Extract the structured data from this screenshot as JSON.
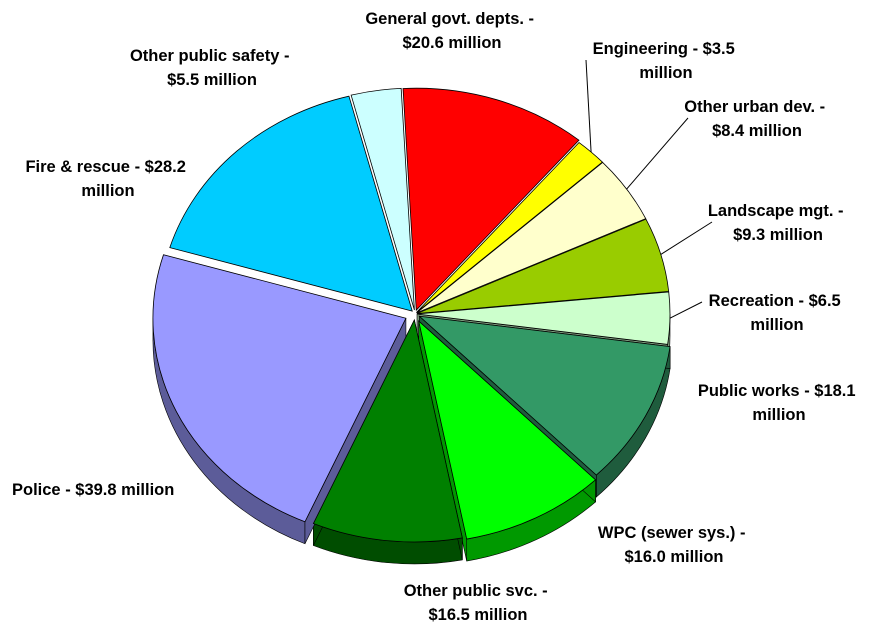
{
  "chart_data": {
    "type": "pie",
    "title": "",
    "series": [
      {
        "label": "General govt. depts. - $20.6 million",
        "category": "General govt. depts.",
        "value": 20.6,
        "color": "#FF0000",
        "side_color": "#990000"
      },
      {
        "label": "Engineering - $3.5 million",
        "category": "Engineering",
        "value": 3.5,
        "color": "#FFFF00",
        "side_color": "#999900"
      },
      {
        "label": "Other urban dev. - $8.4 million",
        "category": "Other urban dev.",
        "value": 8.4,
        "color": "#FFFFCC",
        "side_color": "#99997A"
      },
      {
        "label": "Landscape mgt. - $9.3 million",
        "category": "Landscape mgt.",
        "value": 9.3,
        "color": "#99CC00",
        "side_color": "#5C7A00"
      },
      {
        "label": "Recreation - $6.5 million",
        "category": "Recreation",
        "value": 6.5,
        "color": "#CCFFCC",
        "side_color": "#7A997A"
      },
      {
        "label": "Public works - $18.1 million",
        "category": "Public works",
        "value": 18.1,
        "color": "#339966",
        "side_color": "#1F5C3D"
      },
      {
        "label": "WPC (sewer sys.) - $16.0 million",
        "category": "WPC (sewer sys.)",
        "value": 16.0,
        "color": "#00FF00",
        "side_color": "#009900"
      },
      {
        "label": "Other public svc. - $16.5 million",
        "category": "Other public svc.",
        "value": 16.5,
        "color": "#008000",
        "side_color": "#004D00"
      },
      {
        "label": "Police - $39.8 million",
        "category": "Police",
        "value": 39.8,
        "color": "#9999FF",
        "side_color": "#5C5C99"
      },
      {
        "label": "Fire & rescue - $28.2 million",
        "category": "Fire & rescue",
        "value": 28.2,
        "color": "#00CCFF",
        "side_color": "#007A99"
      },
      {
        "label": "Other public safety - $5.5 million",
        "category": "Other public safety",
        "value": 5.5,
        "color": "#CCFFFF",
        "side_color": "#7A9999"
      }
    ],
    "labels": {
      "gen": [
        "General govt. depts. -",
        "$20.6 million"
      ],
      "eng": [
        "Engineering - $3.5",
        "million"
      ],
      "urb": [
        "Other urban dev. -",
        "$8.4 million"
      ],
      "land": [
        "Landscape mgt. -",
        "$9.3 million"
      ],
      "rec": [
        "Recreation - $6.5",
        "million"
      ],
      "pw": [
        "Public works - $18.1",
        "million"
      ],
      "wpc": [
        "WPC (sewer sys.) -",
        "$16.0 million"
      ],
      "ops": [
        "Other public svc. -",
        "$16.5 million"
      ],
      "pol": [
        "Police - $39.8 million"
      ],
      "fire": [
        "Fire & rescue - $28.2",
        "million"
      ],
      "safe": [
        "Other public safety -",
        "$5.5 million"
      ]
    },
    "legend": "none",
    "grid": false,
    "style": "3d-exploded-pie"
  }
}
